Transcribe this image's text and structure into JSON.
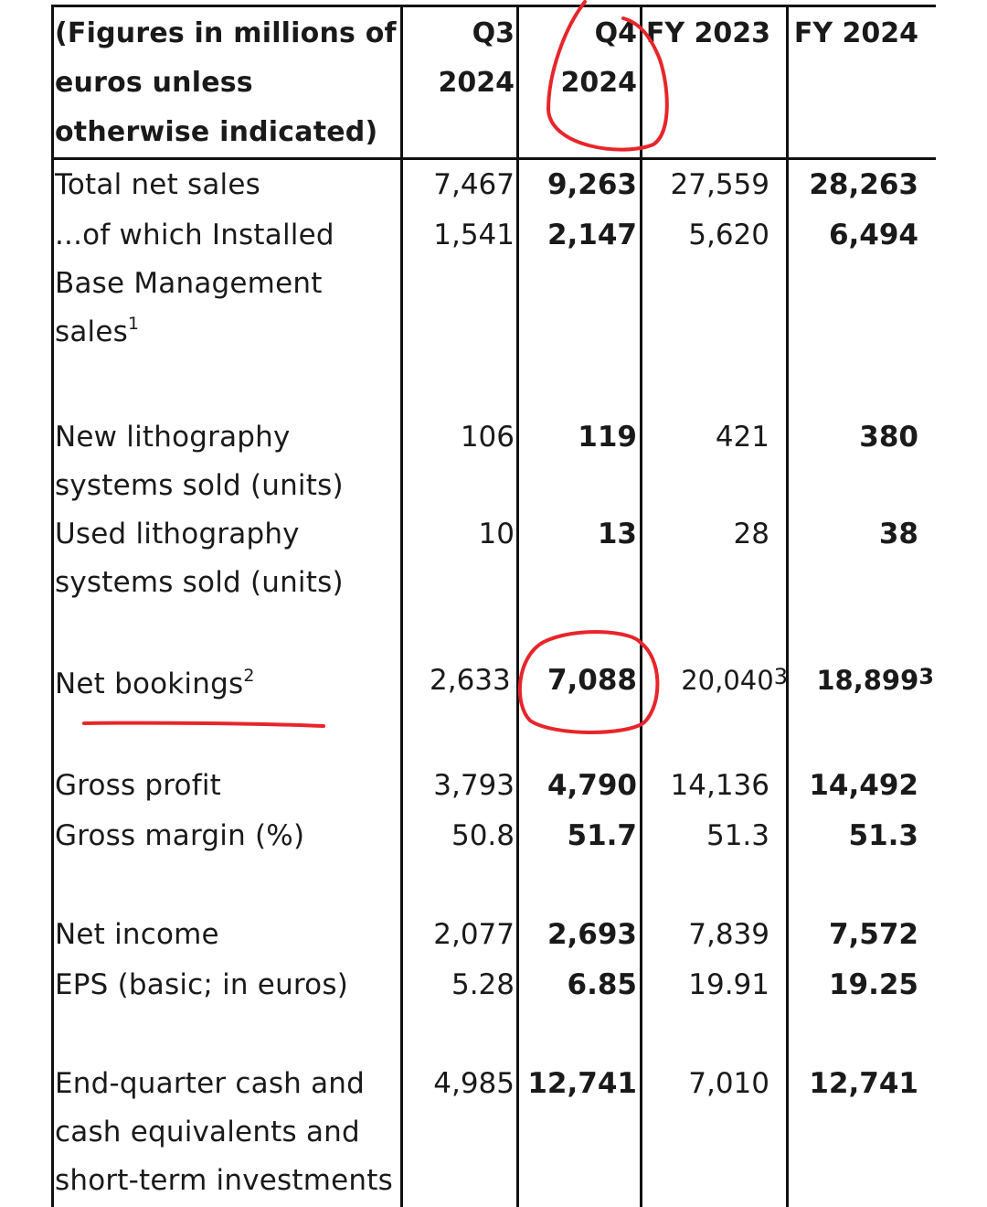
{
  "header": {
    "label_lines": [
      "(Figures in millions of",
      "euros unless",
      "otherwise indicated)"
    ],
    "col1": [
      "Q3",
      "2024"
    ],
    "col2": [
      "Q4",
      "2024"
    ],
    "col3": [
      "FY 2023"
    ],
    "col4": [
      "FY 2024"
    ]
  },
  "rows": {
    "total_net_sales": {
      "label": "Total net sales",
      "q3": "7,467",
      "q4": "9,263",
      "fy23": "27,559",
      "fy24": "28,263"
    },
    "ibm_sales": {
      "label": "...of which Installed Base Management sales",
      "sup": "1",
      "q3": "1,541",
      "q4": "2,147",
      "fy23": "5,620",
      "fy24": "6,494"
    },
    "new_litho": {
      "label": "New lithography systems sold (units)",
      "q3": "106",
      "q4": "119",
      "fy23": "421",
      "fy24": "380"
    },
    "used_litho": {
      "label": "Used lithography systems sold (units)",
      "q3": "10",
      "q4": "13",
      "fy23": "28",
      "fy24": "38"
    },
    "net_bookings": {
      "label": "Net bookings",
      "sup": "2",
      "q3": "2,633",
      "q4": "7,088",
      "fy23": "20,040",
      "fy23_sup": "3",
      "fy24": "18,899",
      "fy24_sup": "3"
    },
    "gross_profit": {
      "label": "Gross profit",
      "q3": "3,793",
      "q4": "4,790",
      "fy23": "14,136",
      "fy24": "14,492"
    },
    "gross_margin": {
      "label": "Gross margin (%)",
      "q3": "50.8",
      "q4": "51.7",
      "fy23": "51.3",
      "fy24": "51.3"
    },
    "net_income": {
      "label": "Net income",
      "q3": "2,077",
      "q4": "2,693",
      "fy23": "7,839",
      "fy24": "7,572"
    },
    "eps": {
      "label": "EPS (basic; in euros)",
      "q3": "5.28",
      "q4": "6.85",
      "fy23": "19.91",
      "fy24": "19.25"
    },
    "cash": {
      "label": "End-quarter cash and cash equivalents and short-term investments",
      "q3": "4,985",
      "q4": "12,741",
      "fy23": "7,010",
      "fy24": "12,741"
    }
  },
  "colors": {
    "text": "#1a1a1a",
    "grid": "#111111",
    "annotation": "#e8252b"
  }
}
